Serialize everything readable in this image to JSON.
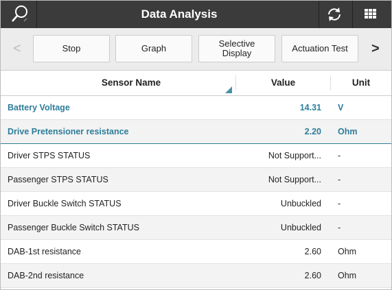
{
  "header": {
    "title": "Data Analysis"
  },
  "toolbar": {
    "prev": "<",
    "next": ">",
    "buttons": [
      "Stop",
      "Graph",
      "Selective Display",
      "Actuation Test"
    ]
  },
  "table": {
    "columns": [
      "Sensor Name",
      "Value",
      "Unit"
    ],
    "rows": [
      [
        "Battery Voltage",
        "14.31",
        "V"
      ],
      [
        "Drive Pretensioner resistance",
        "2.20",
        "Ohm"
      ],
      [
        "Driver STPS STATUS",
        "Not Support...",
        "-"
      ],
      [
        "Passenger STPS STATUS",
        "Not Support...",
        "-"
      ],
      [
        "Driver Buckle Switch STATUS",
        "Unbuckled",
        "-"
      ],
      [
        "Passenger Buckle Switch STATUS",
        "Unbuckled",
        "-"
      ],
      [
        "DAB-1st resistance",
        "2.60",
        "Ohm"
      ],
      [
        "DAB-2nd resistance",
        "2.60",
        "Ohm"
      ]
    ]
  }
}
